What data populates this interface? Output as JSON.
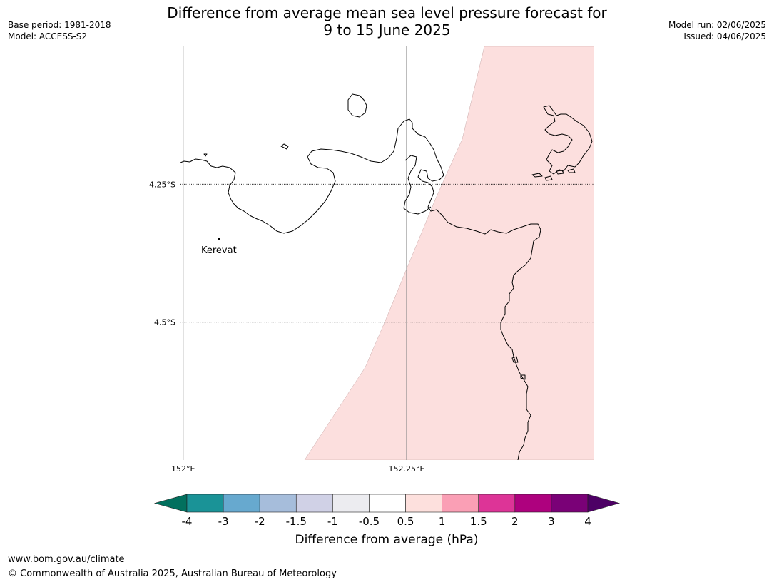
{
  "header": {
    "title_line1": "Difference from average mean sea level pressure forecast for",
    "title_line2": "9 to 15 June 2025",
    "base_period": "Base period: 1981-2018",
    "model": "Model: ACCESS-S2",
    "model_run": "Model run: 02/06/2025",
    "issued": "Issued: 04/06/2025"
  },
  "map": {
    "lon_range": [
      151.997,
      152.46
    ],
    "lat_range": [
      -4.75,
      -4.0
    ],
    "x_ticks": [
      {
        "lon": 152.0,
        "label": "152°E"
      },
      {
        "lon": 152.25,
        "label": "152.25°E"
      }
    ],
    "y_ticks": [
      {
        "lat": -4.25,
        "label": "4.25°S"
      },
      {
        "lat": -4.5,
        "label": "4.5°S"
      }
    ],
    "place": {
      "name": "Kerevat",
      "lon": 152.04,
      "lat": -4.349
    },
    "anomaly_fill_class": "0.5 to 1",
    "anomaly_fill_color": "#fcdfde",
    "coast_color": "#000000"
  },
  "colorbar": {
    "title": "Difference from average (hPa)",
    "tick_labels": [
      "-4",
      "-3",
      "-2",
      "-1.5",
      "-1",
      "-0.5",
      "0.5",
      "1",
      "1.5",
      "2",
      "3",
      "4"
    ],
    "colors": [
      "#1a9397",
      "#67a9cf",
      "#a6bddb",
      "#d0d1e6",
      "#ececf0",
      "#ffffff",
      "#fde0dd",
      "#fa9fb5",
      "#dd3497",
      "#ae017e",
      "#7a0177"
    ],
    "extend_low_color": "#02705e",
    "extend_high_color": "#4d0065"
  },
  "footer": {
    "url": "www.bom.gov.au/climate",
    "copyright": "© Commonwealth of Australia 2025, Australian Bureau of Meteorology"
  }
}
